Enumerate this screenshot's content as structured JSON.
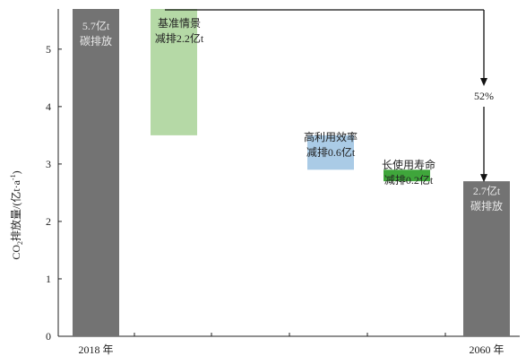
{
  "chart_data": {
    "type": "waterfall",
    "ylabel_main": "CO",
    "ylabel_sub": "2",
    "ylabel_rest": "排放量/(亿t·a",
    "ylabel_sup": "-1",
    "ylabel_end": ")",
    "ylim": [
      0,
      5.7
    ],
    "yticks": [
      "0",
      "1",
      "2",
      "3",
      "4",
      "5"
    ],
    "grid": false,
    "x_labels": [
      "2018 年",
      "2060 年"
    ],
    "bars": [
      {
        "kind": "total",
        "start": 0,
        "end": 5.7,
        "color": "#737373",
        "label_1": "5.7亿t",
        "label_2": "碳排放"
      },
      {
        "kind": "reduction",
        "start": 3.5,
        "end": 5.7,
        "color": "#b5d9a6",
        "label_1": "基准情景",
        "label_2": "减排2.2亿t"
      },
      {
        "kind": "reduction",
        "start": 2.9,
        "end": 3.5,
        "color": "#aacbe6",
        "label_1": "高利用效率",
        "label_2": "减排0.6亿t"
      },
      {
        "kind": "reduction",
        "start": 2.7,
        "end": 2.9,
        "color": "#3fa63b",
        "label_1": "长使用寿命",
        "label_2": "减排0.2亿t"
      },
      {
        "kind": "total",
        "start": 0,
        "end": 2.7,
        "color": "#737373",
        "label_1": "2.7亿t",
        "label_2": "碳排放"
      }
    ],
    "annotation": {
      "text": "52%",
      "from_value": 5.7,
      "to_value": 2.7
    }
  }
}
